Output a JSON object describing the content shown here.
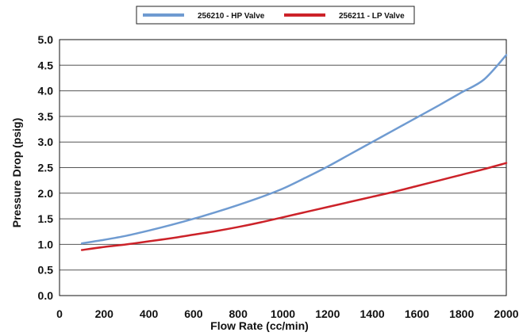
{
  "chart_data": {
    "type": "line",
    "title": "",
    "xlabel": "Flow Rate (cc/min)",
    "ylabel": "Pressure Drop (psig)",
    "xlim": [
      0,
      2000
    ],
    "ylim": [
      0,
      5.0
    ],
    "x_ticks": [
      "0",
      "200",
      "400",
      "600",
      "800",
      "1000",
      "1200",
      "1400",
      "1600",
      "1800",
      "2000"
    ],
    "y_ticks": [
      "0.0",
      "0.5",
      "1.0",
      "1.5",
      "2.0",
      "2.5",
      "3.0",
      "3.5",
      "4.0",
      "4.5",
      "5.0"
    ],
    "grid": "horizontal",
    "legend_position": "top-center",
    "series": [
      {
        "name": "256210 - HP Valve",
        "color": "#6f9bd1",
        "x": [
          100,
          200,
          300,
          400,
          500,
          600,
          700,
          800,
          900,
          1000,
          1100,
          1200,
          1300,
          1400,
          1500,
          1600,
          1700,
          1800,
          1900,
          2000
        ],
        "y": [
          1.02,
          1.09,
          1.17,
          1.27,
          1.38,
          1.5,
          1.63,
          1.77,
          1.92,
          2.09,
          2.3,
          2.52,
          2.76,
          3.0,
          3.24,
          3.48,
          3.72,
          3.97,
          4.22,
          4.7
        ]
      },
      {
        "name": "256211 - LP Valve",
        "color": "#cc2229",
        "x": [
          100,
          200,
          300,
          400,
          500,
          600,
          700,
          800,
          900,
          1000,
          1100,
          1200,
          1300,
          1400,
          1500,
          1600,
          1700,
          1800,
          1900,
          2000
        ],
        "y": [
          0.89,
          0.95,
          1.0,
          1.06,
          1.12,
          1.19,
          1.26,
          1.34,
          1.43,
          1.53,
          1.63,
          1.73,
          1.83,
          1.93,
          2.03,
          2.14,
          2.25,
          2.36,
          2.47,
          2.59
        ]
      }
    ]
  }
}
